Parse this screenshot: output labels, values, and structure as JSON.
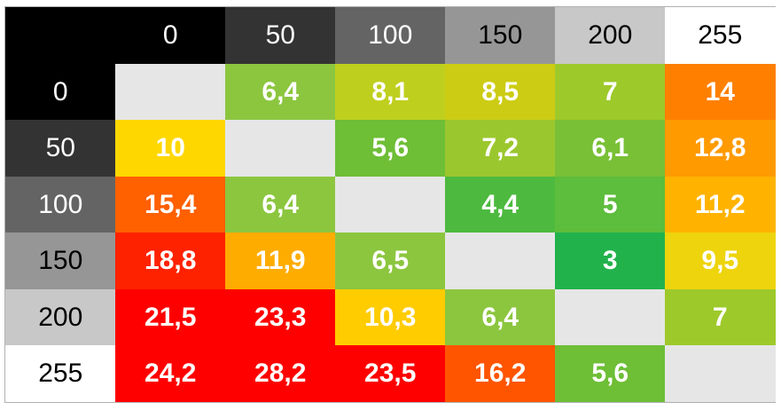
{
  "chart_data": {
    "type": "heatmap",
    "title": "",
    "xlabel": "",
    "ylabel": "",
    "x_labels": [
      "0",
      "50",
      "100",
      "150",
      "200",
      "255"
    ],
    "y_labels": [
      "0",
      "50",
      "100",
      "150",
      "200",
      "255"
    ],
    "header_colors": [
      "#000000",
      "#333333",
      "#646464",
      "#969696",
      "#c8c8c8",
      "#ffffff"
    ],
    "diagonal_color": "#e6e6e6",
    "values": [
      [
        null,
        "6,4",
        "8,1",
        "8,5",
        "7",
        "14"
      ],
      [
        "10",
        null,
        "5,6",
        "7,2",
        "6,1",
        "12,8"
      ],
      [
        "15,4",
        "6,4",
        null,
        "4,4",
        "5",
        "11,2"
      ],
      [
        "18,8",
        "11,9",
        "6,5",
        null,
        "3",
        "9,5"
      ],
      [
        "21,5",
        "23,3",
        "10,3",
        "6,4",
        null,
        "7"
      ],
      [
        "24,2",
        "28,2",
        "23,5",
        "16,2",
        "5,6",
        null
      ]
    ],
    "cell_colors": [
      [
        null,
        "#8cc63f",
        "#bfcf1e",
        "#cccc14",
        "#9ec92b",
        "#ff8000"
      ],
      [
        "#ffd700",
        null,
        "#6ebe36",
        "#9bc72e",
        "#79c036",
        "#ff9a00"
      ],
      [
        "#ff6000",
        "#8cc63f",
        null,
        "#4dba3f",
        "#5dbd3c",
        "#ffb300"
      ],
      [
        "#ff2200",
        "#ffac00",
        "#8cc63f",
        null,
        "#22b24c",
        "#eed40c"
      ],
      [
        "#ff0000",
        "#ff0000",
        "#ffcc00",
        "#8cc63f",
        null,
        "#9ec92b"
      ],
      [
        "#ff0000",
        "#ff0000",
        "#ff0000",
        "#ff5500",
        "#6ebe36",
        null
      ]
    ]
  }
}
